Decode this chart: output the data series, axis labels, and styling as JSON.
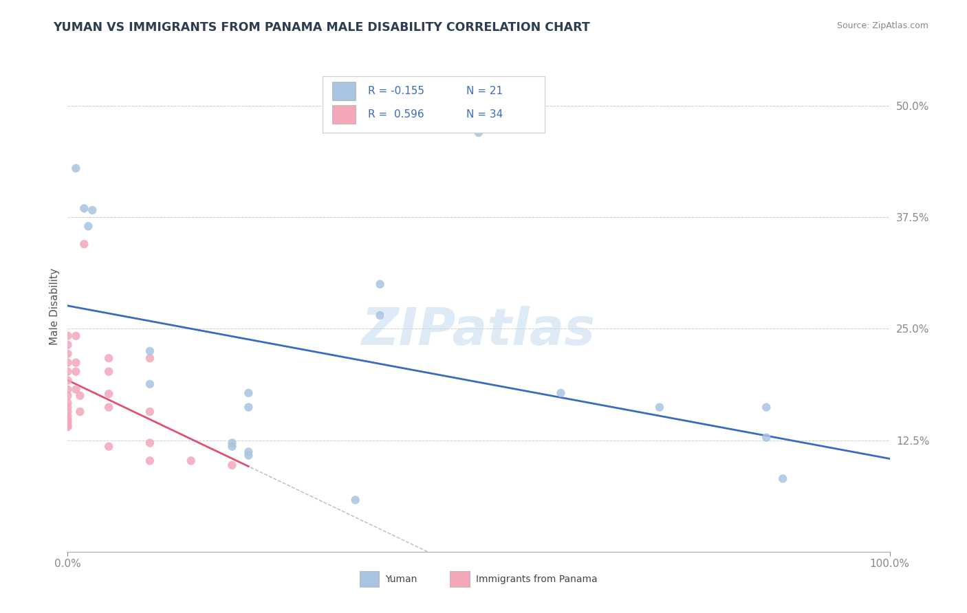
{
  "title": "YUMAN VS IMMIGRANTS FROM PANAMA MALE DISABILITY CORRELATION CHART",
  "source": "Source: ZipAtlas.com",
  "ylabel": "Male Disability",
  "watermark": "ZIPatlas",
  "xlim": [
    0.0,
    1.0
  ],
  "ylim": [
    0.0,
    0.55
  ],
  "ytick_values": [
    0.125,
    0.25,
    0.375,
    0.5
  ],
  "ytick_labels": [
    "12.5%",
    "25.0%",
    "37.5%",
    "50.0%"
  ],
  "legend1_R": "-0.155",
  "legend1_N": "21",
  "legend2_R": "0.596",
  "legend2_N": "34",
  "yuman_color": "#a8c4e0",
  "panama_color": "#f4a7b9",
  "yuman_line_color": "#3a6bbf",
  "panama_line_color": "#e05070",
  "yuman_scatter": [
    [
      0.01,
      0.43
    ],
    [
      0.02,
      0.385
    ],
    [
      0.03,
      0.383
    ],
    [
      0.025,
      0.365
    ],
    [
      0.5,
      0.47
    ],
    [
      0.38,
      0.3
    ],
    [
      0.38,
      0.265
    ],
    [
      0.1,
      0.225
    ],
    [
      0.1,
      0.188
    ],
    [
      0.22,
      0.178
    ],
    [
      0.22,
      0.162
    ],
    [
      0.6,
      0.178
    ],
    [
      0.72,
      0.162
    ],
    [
      0.85,
      0.162
    ],
    [
      0.85,
      0.128
    ],
    [
      0.87,
      0.082
    ],
    [
      0.22,
      0.108
    ],
    [
      0.22,
      0.112
    ],
    [
      0.2,
      0.122
    ],
    [
      0.2,
      0.118
    ],
    [
      0.35,
      0.058
    ]
  ],
  "panama_scatter": [
    [
      0.0,
      0.242
    ],
    [
      0.0,
      0.232
    ],
    [
      0.0,
      0.222
    ],
    [
      0.0,
      0.212
    ],
    [
      0.0,
      0.202
    ],
    [
      0.0,
      0.192
    ],
    [
      0.0,
      0.182
    ],
    [
      0.0,
      0.175
    ],
    [
      0.0,
      0.167
    ],
    [
      0.0,
      0.162
    ],
    [
      0.0,
      0.157
    ],
    [
      0.0,
      0.152
    ],
    [
      0.0,
      0.148
    ],
    [
      0.0,
      0.145
    ],
    [
      0.0,
      0.142
    ],
    [
      0.0,
      0.14
    ],
    [
      0.01,
      0.242
    ],
    [
      0.01,
      0.212
    ],
    [
      0.01,
      0.202
    ],
    [
      0.01,
      0.182
    ],
    [
      0.015,
      0.175
    ],
    [
      0.015,
      0.157
    ],
    [
      0.02,
      0.345
    ],
    [
      0.05,
      0.217
    ],
    [
      0.05,
      0.202
    ],
    [
      0.05,
      0.177
    ],
    [
      0.05,
      0.162
    ],
    [
      0.05,
      0.118
    ],
    [
      0.1,
      0.217
    ],
    [
      0.1,
      0.157
    ],
    [
      0.1,
      0.122
    ],
    [
      0.1,
      0.102
    ],
    [
      0.15,
      0.102
    ],
    [
      0.2,
      0.097
    ]
  ],
  "background_color": "#ffffff",
  "grid_color": "#cccccc"
}
